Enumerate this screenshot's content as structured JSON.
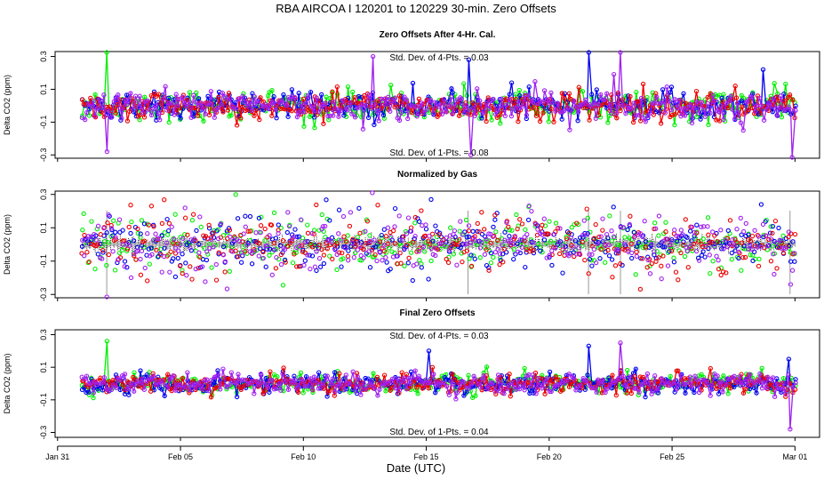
{
  "figure": {
    "title": "RBA   AIRCOA I   120201 to 120229   30-min. Zero Offsets",
    "xlabel": "Date (UTC)",
    "x_tick_labels": [
      "Jan 31",
      "Feb 05",
      "Feb 10",
      "Feb 15",
      "Feb 20",
      "Feb 25",
      "Mar 01"
    ],
    "x_tick_days": [
      0,
      5,
      10,
      15,
      20,
      25,
      30
    ],
    "xlim_days": [
      -0.1,
      31.0
    ],
    "series_colors": [
      "#00ee00",
      "#0000ee",
      "#ee0000",
      "#a020f0"
    ],
    "normalized_color": "#000000"
  },
  "chart_data": [
    {
      "type": "scatter",
      "title": "Zero Offsets After 4-Hr. Cal.",
      "ylabel": "Delta CO2 (ppm)",
      "ylim": [
        -0.32,
        0.33
      ],
      "yticks": [
        -0.3,
        -0.1,
        0.1,
        0.3
      ],
      "ytick_labels": [
        "-0.3",
        "-0.1",
        "0.1",
        "0.3"
      ],
      "stat_top": "Std. Dev. of 4-Pts. =  0.03",
      "stat_bottom": "Std. Dev. of 1-Pts. =  0.08",
      "noise_sd": 0.045,
      "data_start_day": 1.0,
      "data_end_day": 30.0,
      "spikes": [
        {
          "day": 2.0,
          "value": 0.33,
          "series": 0
        },
        {
          "day": 12.8,
          "value": 0.3,
          "series": 3
        },
        {
          "day": 16.7,
          "value": 0.28,
          "series": 1
        },
        {
          "day": 21.6,
          "value": 0.33,
          "series": 1
        },
        {
          "day": 22.9,
          "value": 0.33,
          "series": 3
        },
        {
          "day": 28.7,
          "value": 0.22,
          "series": 1
        },
        {
          "day": 29.9,
          "value": -0.32,
          "series": 3
        },
        {
          "day": 16.8,
          "value": -0.3,
          "series": 3
        },
        {
          "day": 2.0,
          "value": -0.28,
          "series": 3
        }
      ]
    },
    {
      "type": "scatter",
      "title": "Normalized by Gas",
      "ylabel": "Delta CO2 (ppm)",
      "ylim": [
        -0.32,
        0.32
      ],
      "yticks": [
        -0.3,
        -0.1,
        0.1,
        0.3
      ],
      "ytick_labels": [
        "-0.3",
        "-0.1",
        "0.1",
        "0.3"
      ],
      "noise_sd": 0.08,
      "data_start_day": 1.0,
      "data_end_day": 30.0,
      "spikes": [
        {
          "day": 12.8,
          "value": 0.31,
          "series": 3
        },
        {
          "day": 15.2,
          "value": 0.27,
          "series": 1
        },
        {
          "day": 2.0,
          "value": -0.32,
          "series": 3
        },
        {
          "day": 29.8,
          "value": -0.24,
          "series": 3
        },
        {
          "day": 28.6,
          "value": 0.24,
          "series": 1
        },
        {
          "day": 8.8,
          "value": 0.19,
          "series": 0
        }
      ]
    },
    {
      "type": "scatter",
      "title": "Final Zero Offsets",
      "ylabel": "Delta CO2 (ppm)",
      "ylim": [
        -0.33,
        0.33
      ],
      "yticks": [
        -0.3,
        -0.1,
        0.1,
        0.3
      ],
      "ytick_labels": [
        "-0.3",
        "-0.1",
        "0.1",
        "0.3"
      ],
      "stat_top": "Std. Dev. of 4-Pts. =  0.03",
      "stat_bottom": "Std. Dev. of 1-Pts. =  0.04",
      "noise_sd": 0.03,
      "data_start_day": 1.0,
      "data_end_day": 30.0,
      "spikes": [
        {
          "day": 2.0,
          "value": 0.26,
          "series": 0
        },
        {
          "day": 21.6,
          "value": 0.23,
          "series": 1
        },
        {
          "day": 22.9,
          "value": 0.25,
          "series": 3
        },
        {
          "day": 29.8,
          "value": -0.28,
          "series": 3
        },
        {
          "day": 29.7,
          "value": 0.15,
          "series": 1
        },
        {
          "day": 15.1,
          "value": 0.2,
          "series": 1
        }
      ]
    }
  ]
}
